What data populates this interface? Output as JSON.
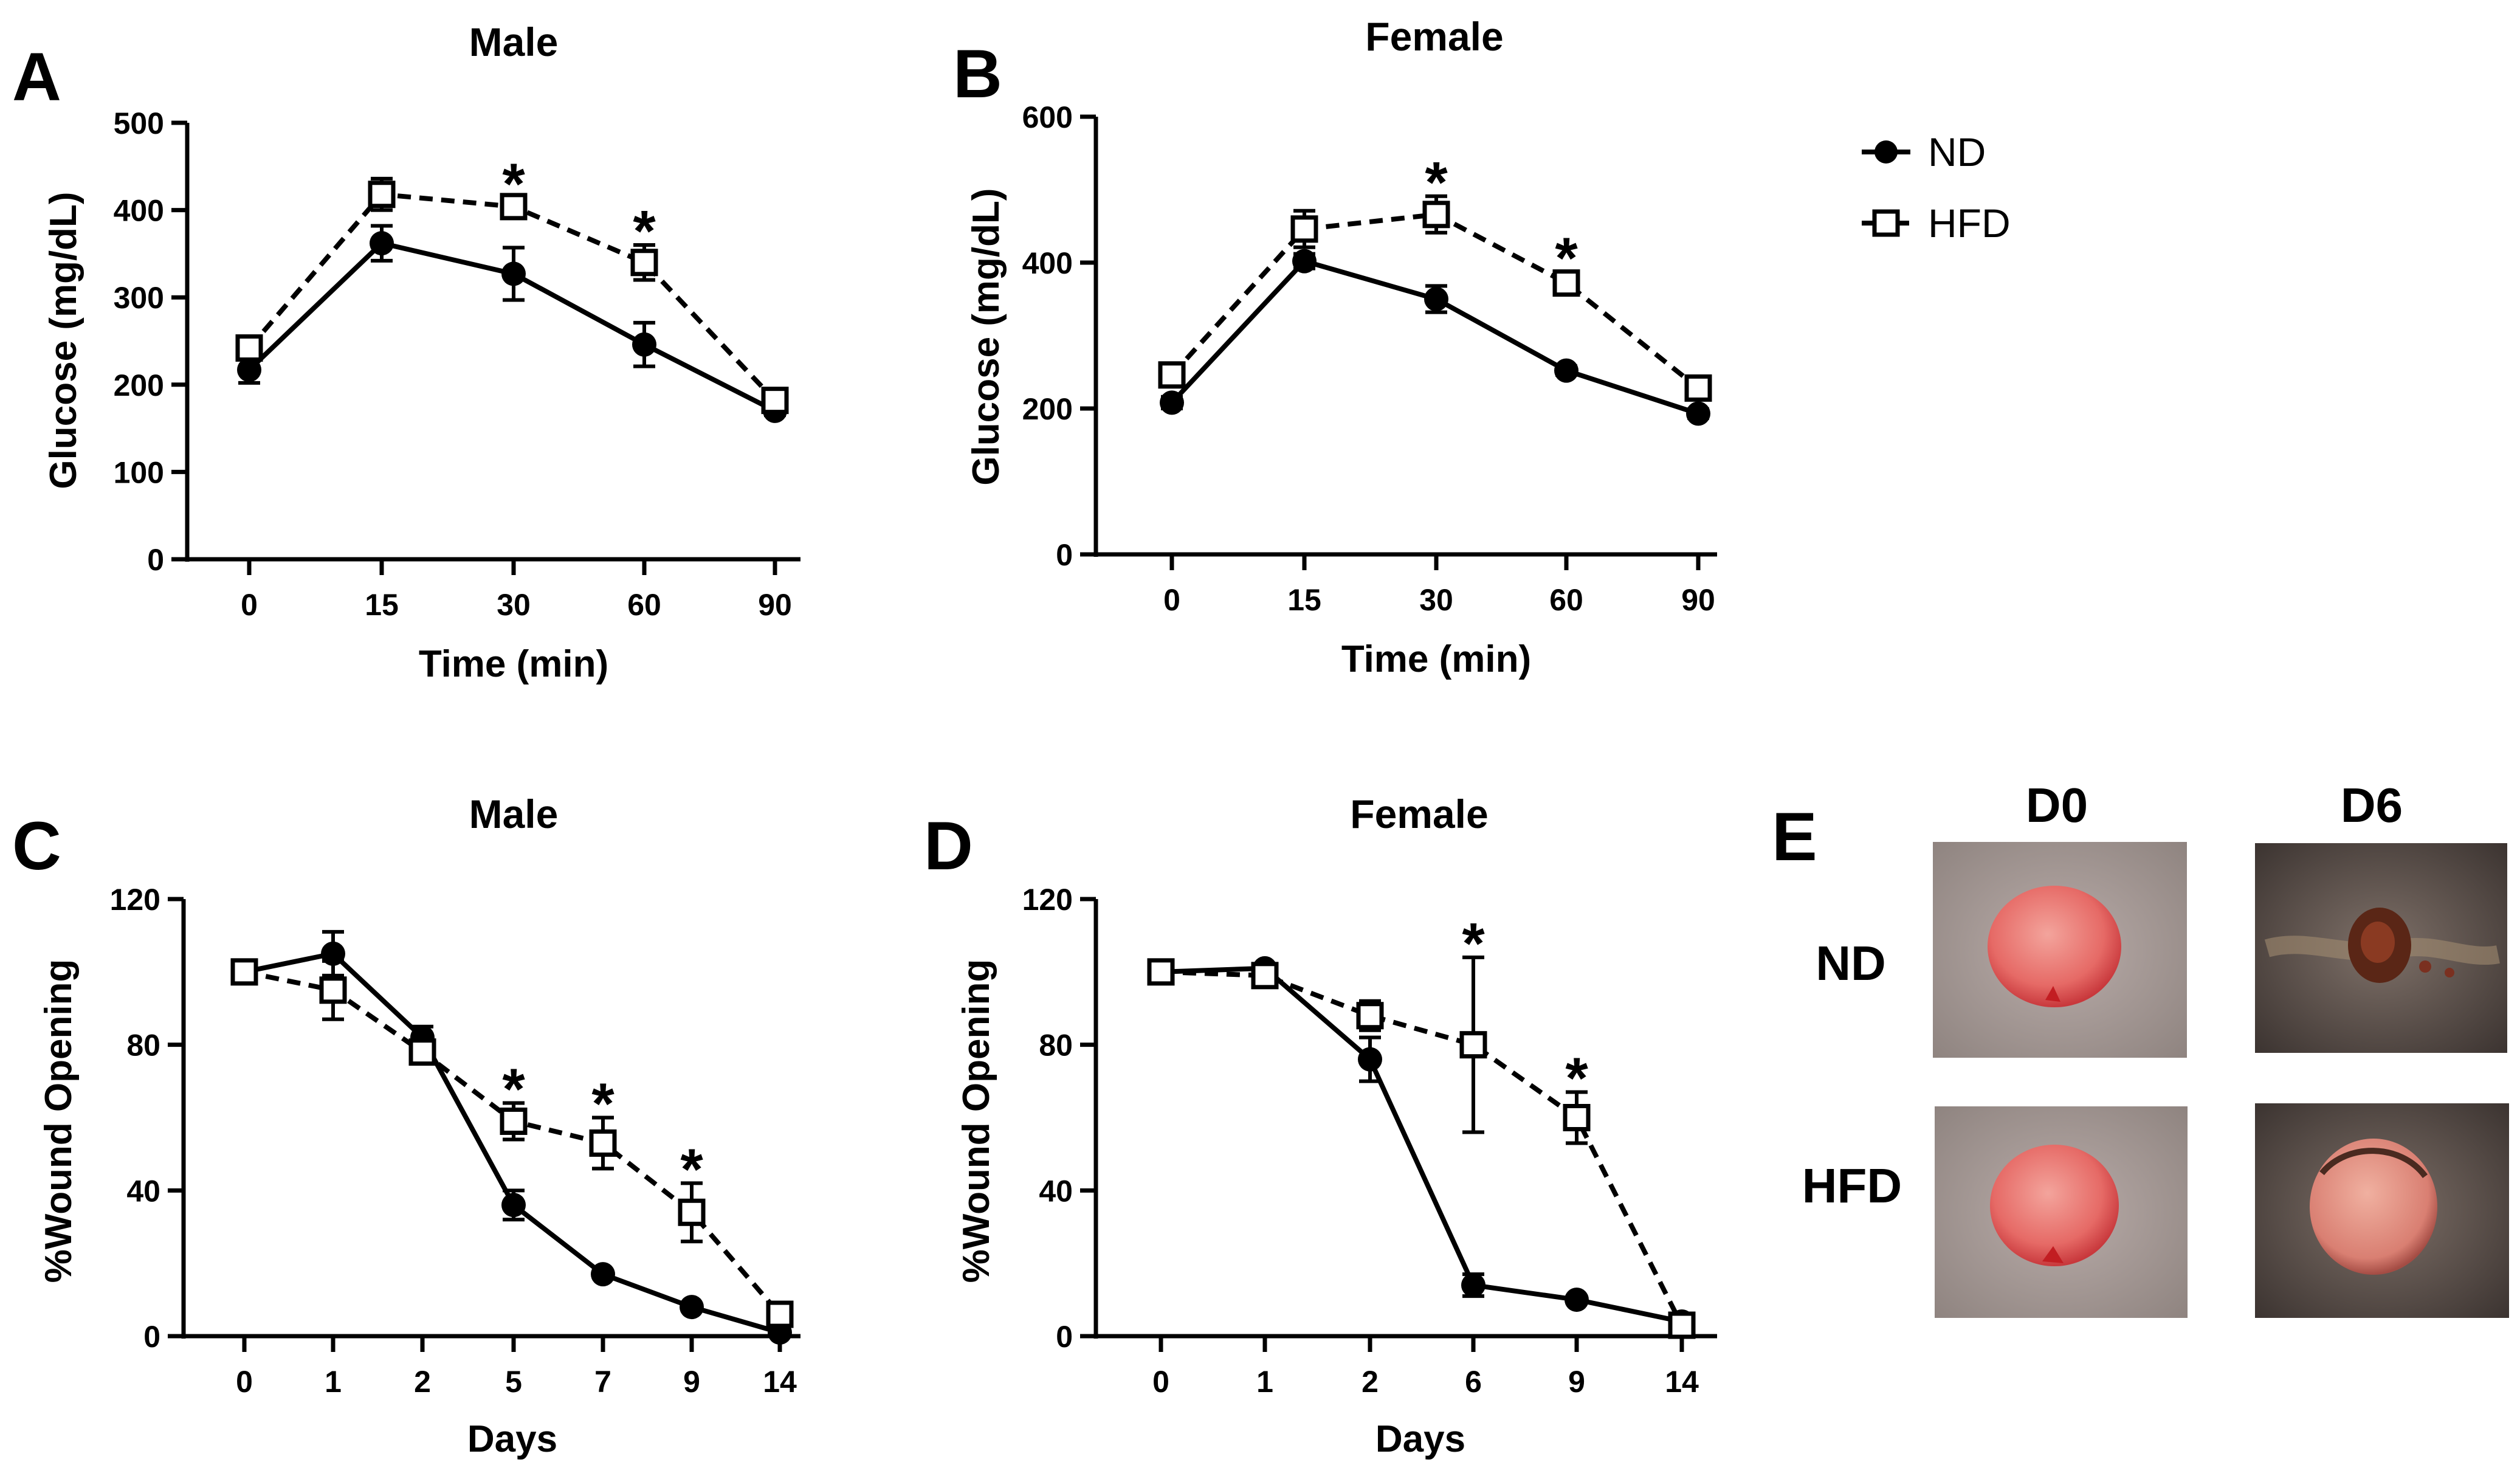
{
  "legend": [
    {
      "name": "ND",
      "marker": "filled-circle",
      "line": "solid"
    },
    {
      "name": "HFD",
      "marker": "open-square",
      "line": "dashed"
    }
  ],
  "significance_marker": "*",
  "chart_data": [
    {
      "id": "A",
      "type": "line",
      "title": "Male",
      "xlabel": "Time (min)",
      "ylabel": "Glucose (mg/dL)",
      "categories": [
        "0",
        "15",
        "30",
        "60",
        "90"
      ],
      "ylim": [
        0,
        500
      ],
      "yticks": [
        0,
        100,
        200,
        300,
        400,
        500
      ],
      "series": [
        {
          "name": "ND",
          "values": [
            217,
            362,
            327,
            246,
            170
          ],
          "errors": [
            15,
            20,
            30,
            25,
            5
          ]
        },
        {
          "name": "HFD",
          "values": [
            242,
            418,
            404,
            340,
            182
          ],
          "errors": [
            10,
            18,
            10,
            20,
            8
          ]
        }
      ],
      "significant": [
        "30",
        "60"
      ]
    },
    {
      "id": "B",
      "type": "line",
      "title": "Female",
      "xlabel": "Time (min)",
      "ylabel": "Glucose (mg/dL)",
      "categories": [
        "0",
        "15",
        "30",
        "60",
        "90"
      ],
      "ylim": [
        0,
        600
      ],
      "yticks": [
        0,
        200,
        400,
        600
      ],
      "series": [
        {
          "name": "ND",
          "values": [
            208,
            402,
            350,
            252,
            193
          ],
          "errors": [
            8,
            10,
            18,
            6,
            6
          ]
        },
        {
          "name": "HFD",
          "values": [
            246,
            446,
            466,
            372,
            228
          ],
          "errors": [
            10,
            25,
            25,
            15,
            10
          ]
        }
      ],
      "significant": [
        "30",
        "60"
      ]
    },
    {
      "id": "C",
      "type": "line",
      "title": "Male",
      "xlabel": "Days",
      "ylabel": "%Wound Opening",
      "categories": [
        "0",
        "1",
        "2",
        "5",
        "7",
        "9",
        "14"
      ],
      "ylim": [
        0,
        120
      ],
      "yticks": [
        0,
        40,
        80,
        120
      ],
      "series": [
        {
          "name": "ND",
          "values": [
            100,
            105,
            82,
            36,
            17,
            8,
            1
          ],
          "errors": [
            2,
            6,
            3,
            4,
            1,
            1,
            1
          ]
        },
        {
          "name": "HFD",
          "values": [
            100,
            95,
            78,
            59,
            53,
            34,
            6
          ],
          "errors": [
            2,
            8,
            3,
            5,
            7,
            8,
            2
          ]
        }
      ],
      "significant": [
        "5",
        "7",
        "9"
      ]
    },
    {
      "id": "D",
      "type": "line",
      "title": "Female",
      "xlabel": "Days",
      "ylabel": "%Wound Opening",
      "categories": [
        "0",
        "1",
        "2",
        "6",
        "9",
        "14"
      ],
      "ylim": [
        0,
        120
      ],
      "yticks": [
        0,
        40,
        80,
        120
      ],
      "series": [
        {
          "name": "ND",
          "values": [
            100,
            101,
            76,
            14,
            10,
            4
          ],
          "errors": [
            2,
            1,
            6,
            3,
            1,
            1
          ]
        },
        {
          "name": "HFD",
          "values": [
            100,
            99,
            88,
            80,
            60,
            3
          ],
          "errors": [
            2,
            2,
            4,
            24,
            7,
            2
          ]
        }
      ],
      "significant": [
        "6",
        "9"
      ]
    }
  ],
  "panel_e": {
    "id": "E",
    "columns": [
      "D0",
      "D6"
    ],
    "rows": [
      "ND",
      "HFD"
    ]
  }
}
